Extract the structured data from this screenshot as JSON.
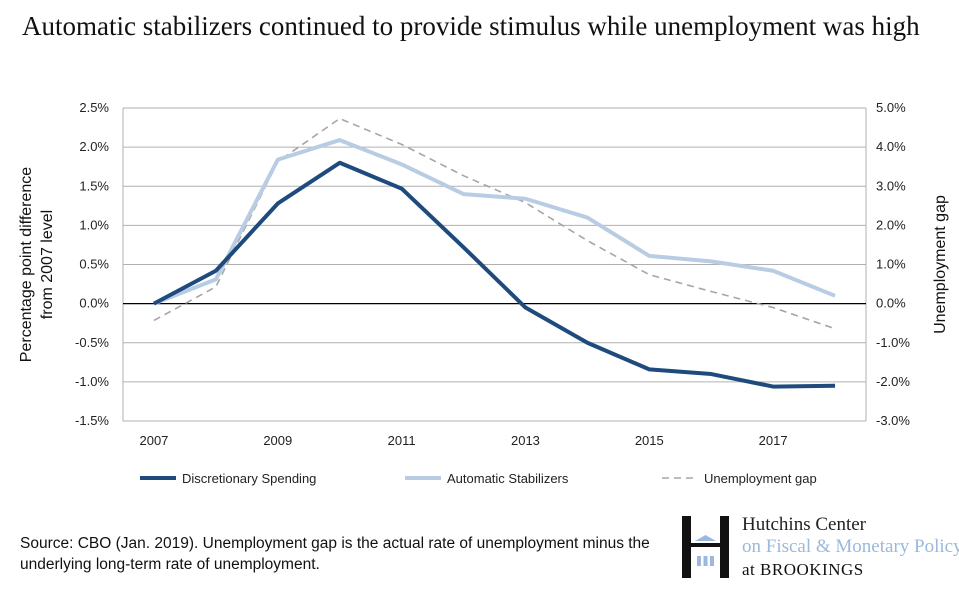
{
  "title": "Automatic stabilizers continued to provide stimulus while unemployment was high",
  "source": "Source: CBO (Jan. 2019). Unemployment gap is the actual rate of unemployment minus the underlying long-term rate of unemployment.",
  "logo": {
    "line1": "Hutchins Center",
    "line2": "on Fiscal & Monetary Policy",
    "line3": "at BROOKINGS",
    "accent": "#9bb8de"
  },
  "chart_data": {
    "type": "line",
    "title": "Automatic stabilizers continued to provide stimulus while unemployment was high",
    "x": [
      2007,
      2008,
      2009,
      2010,
      2011,
      2012,
      2013,
      2014,
      2015,
      2016,
      2017,
      2018
    ],
    "x_tick_labels": [
      "2007",
      "2009",
      "2011",
      "2013",
      "2015",
      "2017"
    ],
    "ylabel": "Percentage point difference from 2007 level",
    "ylim": [
      -1.5,
      2.5
    ],
    "y_tick_labels": [
      "-1.5%",
      "-1.0%",
      "-0.5%",
      "0.0%",
      "0.5%",
      "1.0%",
      "1.5%",
      "2.0%",
      "2.5%"
    ],
    "y2label": "Unemployment gap",
    "y2lim": [
      -3.0,
      5.0
    ],
    "y2_tick_labels": [
      "-3.0%",
      "-2.0%",
      "-1.0%",
      "0.0%",
      "1.0%",
      "2.0%",
      "3.0%",
      "4.0%",
      "5.0%"
    ],
    "grid": true,
    "legend_position": "bottom",
    "series": [
      {
        "name": "Discretionary Spending",
        "axis": "left",
        "color": "#1f4a7d",
        "style": "solid",
        "values": [
          0,
          0.42,
          1.28,
          1.8,
          1.47,
          0.72,
          -0.05,
          -0.5,
          -0.84,
          -0.9,
          -1.06,
          -1.05
        ]
      },
      {
        "name": "Automatic Stabilizers",
        "axis": "left",
        "color": "#b8cde4",
        "style": "solid",
        "values": [
          0,
          0.31,
          1.84,
          2.09,
          1.78,
          1.4,
          1.34,
          1.1,
          0.61,
          0.54,
          0.42,
          0.1
        ]
      },
      {
        "name": "Unemployment gap",
        "axis": "right",
        "color": "#a6a6a6",
        "style": "dashed",
        "values": [
          -0.43,
          0.43,
          3.63,
          4.73,
          4.07,
          3.27,
          2.58,
          1.61,
          0.74,
          0.31,
          -0.1,
          -0.64
        ]
      }
    ]
  }
}
